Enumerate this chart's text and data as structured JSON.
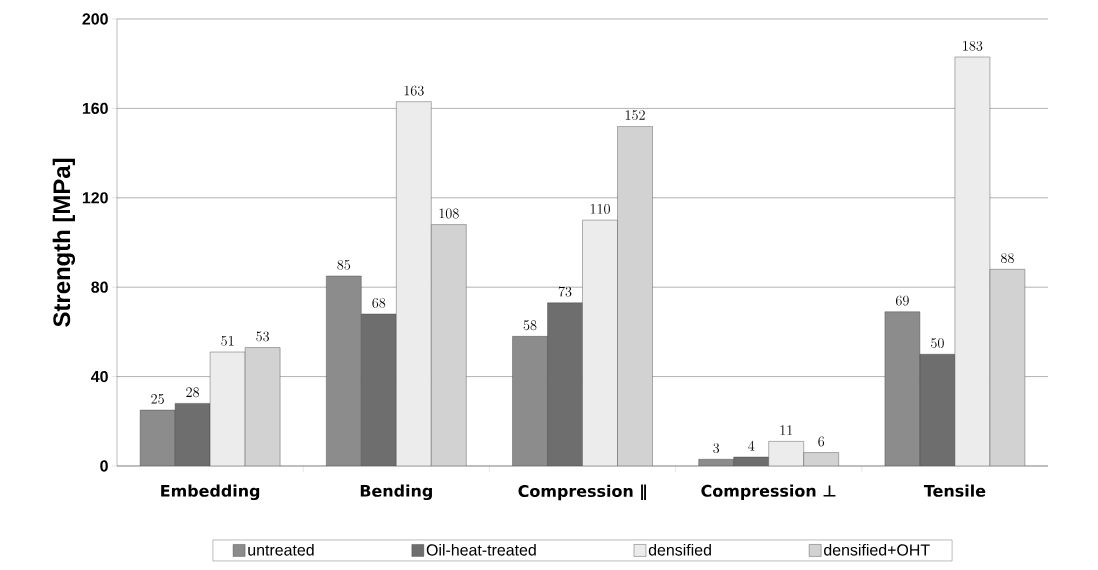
{
  "chart_data": {
    "type": "bar",
    "ylabel": "Strength  [MPa]",
    "categories": [
      "Embedding",
      "Bending",
      "Compression ∥",
      "Compression ⊥",
      "Tensile"
    ],
    "series": [
      {
        "name": "untreated",
        "color": "#8c8c8c",
        "values": [
          25,
          85,
          58,
          3,
          69
        ]
      },
      {
        "name": "Oil-heat-treated",
        "color": "#6e6e6e",
        "values": [
          28,
          68,
          73,
          4,
          50
        ]
      },
      {
        "name": "densified",
        "color": "#ececec",
        "values": [
          51,
          163,
          110,
          11,
          183
        ]
      },
      {
        "name": "densified+OHT",
        "color": "#d2d2d2",
        "values": [
          53,
          108,
          152,
          6,
          88
        ]
      }
    ],
    "ylim": [
      0,
      200
    ],
    "yticks": [
      0,
      40,
      80,
      120,
      160,
      200
    ],
    "grid": "y",
    "legend": "bottom",
    "data_labels": true
  }
}
